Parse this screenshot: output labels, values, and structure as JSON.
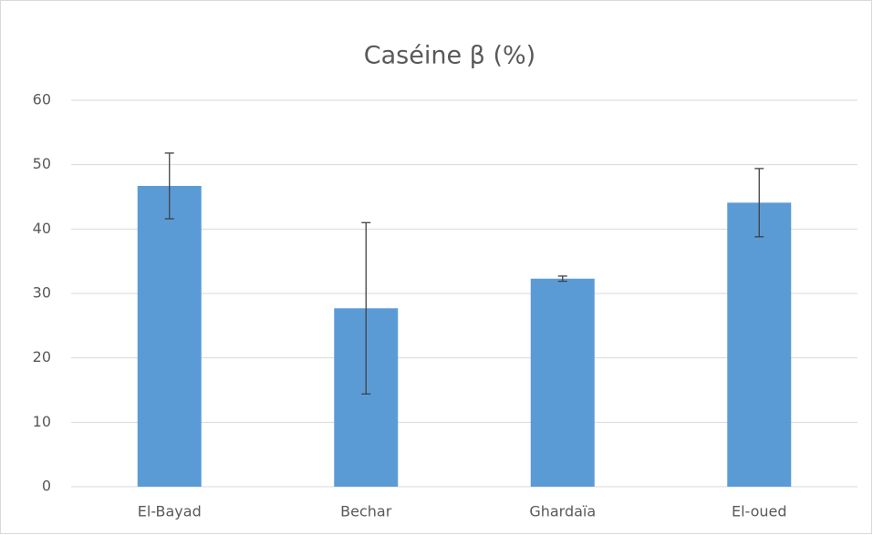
{
  "chart_data": {
    "type": "bar",
    "title": "Caséine β (%)",
    "categories": [
      "El-Bayad",
      "Bechar",
      "Ghardaïa",
      "El-oued"
    ],
    "values": [
      46.7,
      27.7,
      32.3,
      44.1
    ],
    "errors": [
      5.1,
      13.3,
      0.4,
      5.3
    ],
    "color": "#5b9bd5",
    "ylim": [
      0,
      60
    ],
    "yticks": [
      0,
      10,
      20,
      30,
      40,
      50,
      60
    ],
    "grid": true
  }
}
